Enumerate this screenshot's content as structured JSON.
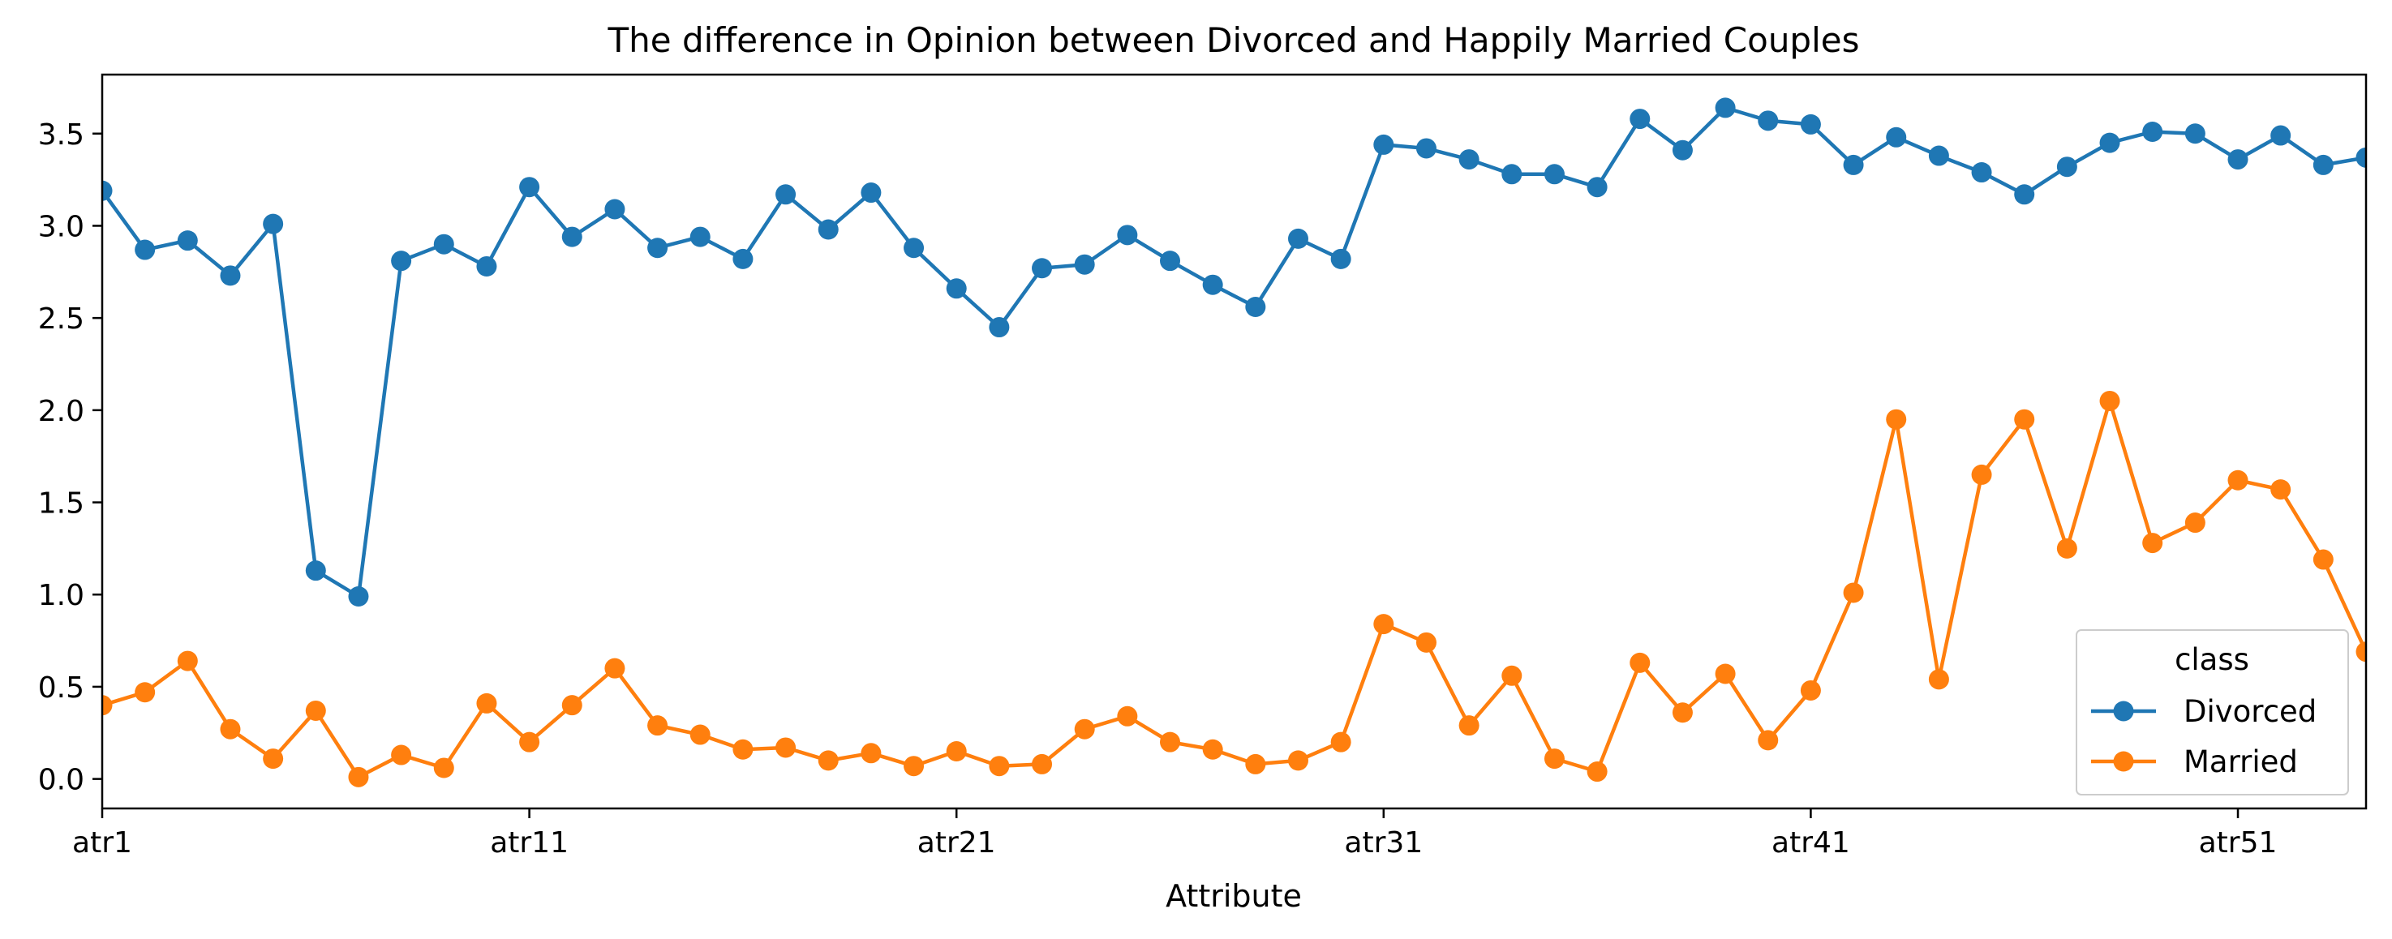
{
  "chart_data": {
    "type": "line",
    "title": "The difference in Opinion between Divorced and Happily Married Couples",
    "xlabel": "Attribute",
    "ylabel": "",
    "categories": [
      "atr1",
      "atr2",
      "atr3",
      "atr4",
      "atr5",
      "atr6",
      "atr7",
      "atr8",
      "atr9",
      "atr10",
      "atr11",
      "atr12",
      "atr13",
      "atr14",
      "atr15",
      "atr16",
      "atr17",
      "atr18",
      "atr19",
      "atr20",
      "atr21",
      "atr22",
      "atr23",
      "atr24",
      "atr25",
      "atr26",
      "atr27",
      "atr28",
      "atr29",
      "atr30",
      "atr31",
      "atr32",
      "atr33",
      "atr34",
      "atr35",
      "atr36",
      "atr37",
      "atr38",
      "atr39",
      "atr40",
      "atr41",
      "atr42",
      "atr43",
      "atr44",
      "atr45",
      "atr46",
      "atr47",
      "atr48",
      "atr49",
      "atr50",
      "atr51",
      "atr52",
      "atr53",
      "atr54"
    ],
    "x_tick_labels": [
      "atr1",
      "atr11",
      "atr21",
      "atr31",
      "atr41",
      "atr51"
    ],
    "x_tick_indices": [
      0,
      10,
      20,
      30,
      40,
      50
    ],
    "ylim": [
      -0.16,
      3.82
    ],
    "y_ticks": [
      0.0,
      0.5,
      1.0,
      1.5,
      2.0,
      2.5,
      3.0,
      3.5
    ],
    "y_tick_labels": [
      "0.0",
      "0.5",
      "1.0",
      "1.5",
      "2.0",
      "2.5",
      "3.0",
      "3.5"
    ],
    "grid": false,
    "legend": {
      "title": "class",
      "placement": "bottom-right"
    },
    "series": [
      {
        "name": "Divorced",
        "color": "#1f77b4",
        "values": [
          3.19,
          2.87,
          2.92,
          2.73,
          3.01,
          1.13,
          0.99,
          2.81,
          2.9,
          2.78,
          3.21,
          2.94,
          3.09,
          2.88,
          2.94,
          2.82,
          3.17,
          2.98,
          3.18,
          2.88,
          2.66,
          2.45,
          2.77,
          2.79,
          2.95,
          2.81,
          2.68,
          2.56,
          2.93,
          2.82,
          3.44,
          3.42,
          3.36,
          3.28,
          3.28,
          3.21,
          3.58,
          3.41,
          3.64,
          3.57,
          3.55,
          3.33,
          3.48,
          3.38,
          3.29,
          3.17,
          3.32,
          3.45,
          3.51,
          3.5,
          3.36,
          3.49,
          3.33,
          3.37
        ]
      },
      {
        "name": "Married",
        "color": "#ff7f0e",
        "values": [
          0.4,
          0.47,
          0.64,
          0.27,
          0.11,
          0.37,
          0.01,
          0.13,
          0.06,
          0.41,
          0.2,
          0.4,
          0.6,
          0.29,
          0.24,
          0.16,
          0.17,
          0.1,
          0.14,
          0.07,
          0.15,
          0.07,
          0.08,
          0.27,
          0.34,
          0.2,
          0.16,
          0.08,
          0.1,
          0.2,
          0.84,
          0.74,
          0.29,
          0.56,
          0.11,
          0.04,
          0.63,
          0.36,
          0.57,
          0.21,
          0.48,
          1.01,
          1.95,
          0.54,
          1.65,
          1.95,
          1.25,
          2.05,
          1.28,
          1.39,
          1.62,
          1.57,
          1.19,
          0.69
        ]
      }
    ]
  }
}
